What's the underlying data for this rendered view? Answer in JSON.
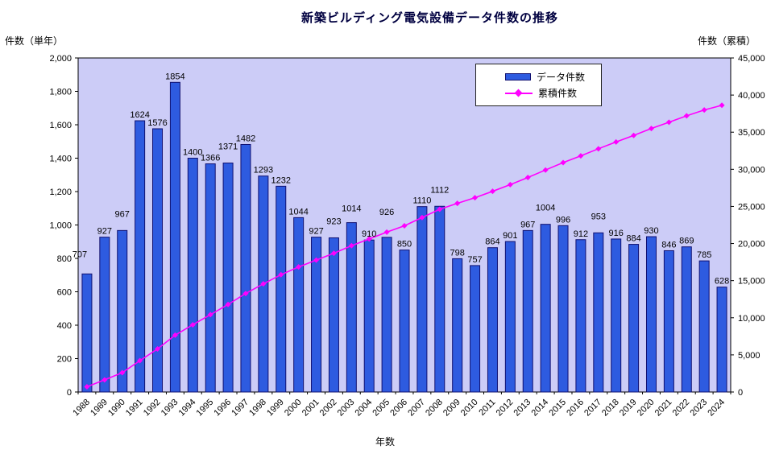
{
  "title": "新築ビルディング電気設備データ件数の推移",
  "axes": {
    "left_label": "件数（単年）",
    "right_label": "件数（累積）",
    "x_label": "年数"
  },
  "legend": {
    "items": [
      {
        "label": "データ件数",
        "swatch": "bar-swatch"
      },
      {
        "label": "累積件数",
        "swatch": "line-diamond-swatch"
      }
    ]
  },
  "colors": {
    "bar-fill": "#2E5BE0",
    "bar-border": "#101070",
    "line-color": "#FF00FF",
    "plot-bg": "#CCCCF7",
    "axis-color": "#000000",
    "title-color": "#000040",
    "label-color": "#000000"
  },
  "chart_data": {
    "type": "bar",
    "subtype": "bar+line combo, dual axis",
    "title": "新築ビルディング電気設備データ件数の推移",
    "xlabel": "年数",
    "ylabel_left": "件数（単年）",
    "ylabel_right": "件数（累積）",
    "left_ylim": [
      0,
      2000
    ],
    "left_tick_step": 200,
    "right_ylim": [
      0,
      45000
    ],
    "right_tick_step": 5000,
    "grid": false,
    "legend_position": "inside top-right",
    "categories": [
      "1988",
      "1989",
      "1990",
      "1991",
      "1992",
      "1993",
      "1994",
      "1995",
      "1996",
      "1997",
      "1998",
      "1999",
      "2000",
      "2001",
      "2002",
      "2003",
      "2004",
      "2005",
      "2006",
      "2007",
      "2008",
      "2009",
      "2010",
      "2011",
      "2012",
      "2013",
      "2014",
      "2015",
      "2016",
      "2017",
      "2018",
      "2019",
      "2020",
      "2021",
      "2022",
      "2023",
      "2024"
    ],
    "series": [
      {
        "name": "データ件数",
        "type": "bar",
        "axis": "left",
        "data_labels": true,
        "values": [
          707,
          927,
          967,
          1624,
          1576,
          1854,
          1400,
          1366,
          1371,
          1482,
          1293,
          1232,
          1044,
          927,
          923,
          1014,
          910,
          926,
          850,
          1110,
          1112,
          798,
          757,
          864,
          901,
          967,
          1004,
          996,
          912,
          953,
          916,
          884,
          930,
          846,
          869,
          785,
          628
        ]
      },
      {
        "name": "累積件数",
        "type": "line",
        "axis": "right",
        "marker": "diamond",
        "data_labels": false,
        "values": [
          707,
          1634,
          2601,
          4225,
          5801,
          7655,
          9055,
          10421,
          11792,
          13274,
          14567,
          15799,
          16843,
          17770,
          18693,
          19707,
          20617,
          21543,
          22393,
          23503,
          24615,
          25413,
          26170,
          27034,
          27935,
          28902,
          29906,
          30902,
          31814,
          32767,
          33683,
          34567,
          35497,
          36343,
          37212,
          37997,
          38625
        ]
      }
    ]
  }
}
